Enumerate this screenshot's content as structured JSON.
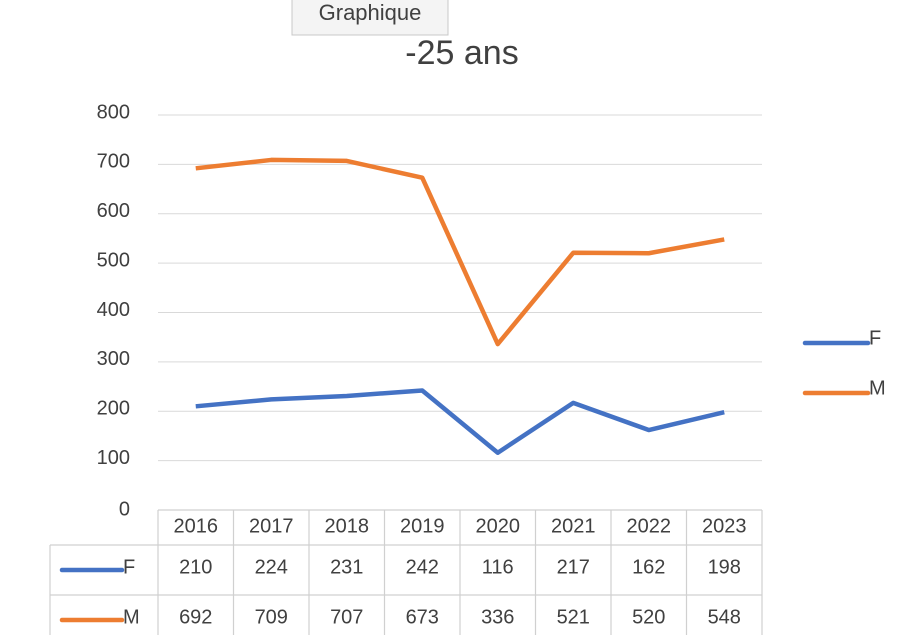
{
  "tooltip": "Graphique",
  "chart_data": {
    "type": "line",
    "title": "-25 ans",
    "categories": [
      "2016",
      "2017",
      "2018",
      "2019",
      "2020",
      "2021",
      "2022",
      "2023"
    ],
    "series": [
      {
        "name": "F",
        "color": "#4472c4",
        "values": [
          210,
          224,
          231,
          242,
          116,
          217,
          162,
          198
        ]
      },
      {
        "name": "M",
        "color": "#ed7d31",
        "values": [
          692,
          709,
          707,
          673,
          336,
          521,
          520,
          548
        ]
      }
    ],
    "ylim": [
      0,
      800
    ],
    "yticks": [
      0,
      100,
      200,
      300,
      400,
      500,
      600,
      700,
      800
    ],
    "grid": true,
    "legend": "right",
    "data_table": true
  }
}
